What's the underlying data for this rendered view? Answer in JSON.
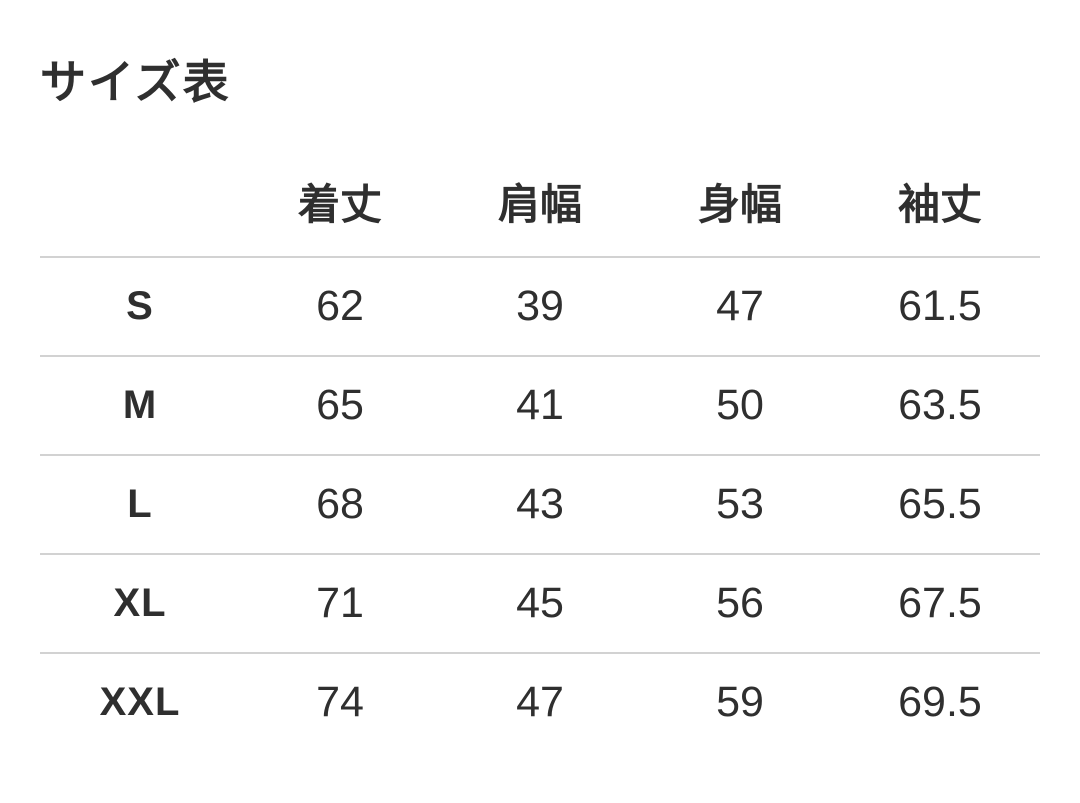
{
  "page": {
    "title": "サイズ表"
  },
  "size_table": {
    "corner_label": "",
    "columns": [
      "着丈",
      "肩幅",
      "身幅",
      "袖丈"
    ],
    "rows": [
      {
        "size": "S",
        "values": [
          "62",
          "39",
          "47",
          "61.5"
        ]
      },
      {
        "size": "M",
        "values": [
          "65",
          "41",
          "50",
          "63.5"
        ]
      },
      {
        "size": "L",
        "values": [
          "68",
          "43",
          "53",
          "65.5"
        ]
      },
      {
        "size": "XL",
        "values": [
          "71",
          "45",
          "56",
          "67.5"
        ]
      },
      {
        "size": "XXL",
        "values": [
          "74",
          "47",
          "59",
          "69.5"
        ]
      }
    ]
  },
  "chart_data": {
    "type": "table",
    "title": "サイズ表",
    "columns": [
      "着丈",
      "肩幅",
      "身幅",
      "袖丈"
    ],
    "row_headers": [
      "S",
      "M",
      "L",
      "XL",
      "XXL"
    ],
    "rows": [
      [
        62,
        39,
        47,
        61.5
      ],
      [
        65,
        41,
        50,
        63.5
      ],
      [
        68,
        43,
        53,
        65.5
      ],
      [
        71,
        45,
        56,
        67.5
      ],
      [
        74,
        47,
        59,
        69.5
      ]
    ]
  },
  "colors": {
    "text": "#2f2f2f",
    "divider": "#d2d2d2",
    "background": "#ffffff"
  }
}
